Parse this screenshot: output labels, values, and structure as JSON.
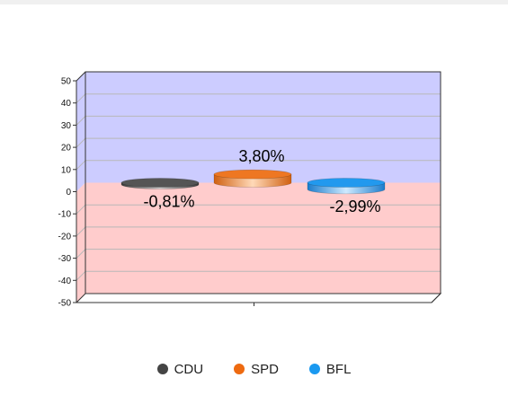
{
  "chart_data": {
    "type": "bar",
    "categories": [
      "CDU",
      "SPD",
      "BFL"
    ],
    "series": [
      {
        "name": "CDU",
        "value": -0.81,
        "label": "-0,81%",
        "color": "#555555"
      },
      {
        "name": "SPD",
        "value": 3.8,
        "label": "3,80%",
        "color": "#ee7722"
      },
      {
        "name": "BFL",
        "value": -2.99,
        "label": "-2,99%",
        "color": "#2299ee"
      }
    ],
    "ylim": [
      -50,
      50
    ],
    "yticks": [
      "50",
      "40",
      "30",
      "20",
      "10",
      "0",
      "-10",
      "-20",
      "-30",
      "-40",
      "-50"
    ],
    "grid": true,
    "legend_position": "bottom",
    "positive_region_color": "#ccccff",
    "negative_region_color": "#ffcccc"
  }
}
